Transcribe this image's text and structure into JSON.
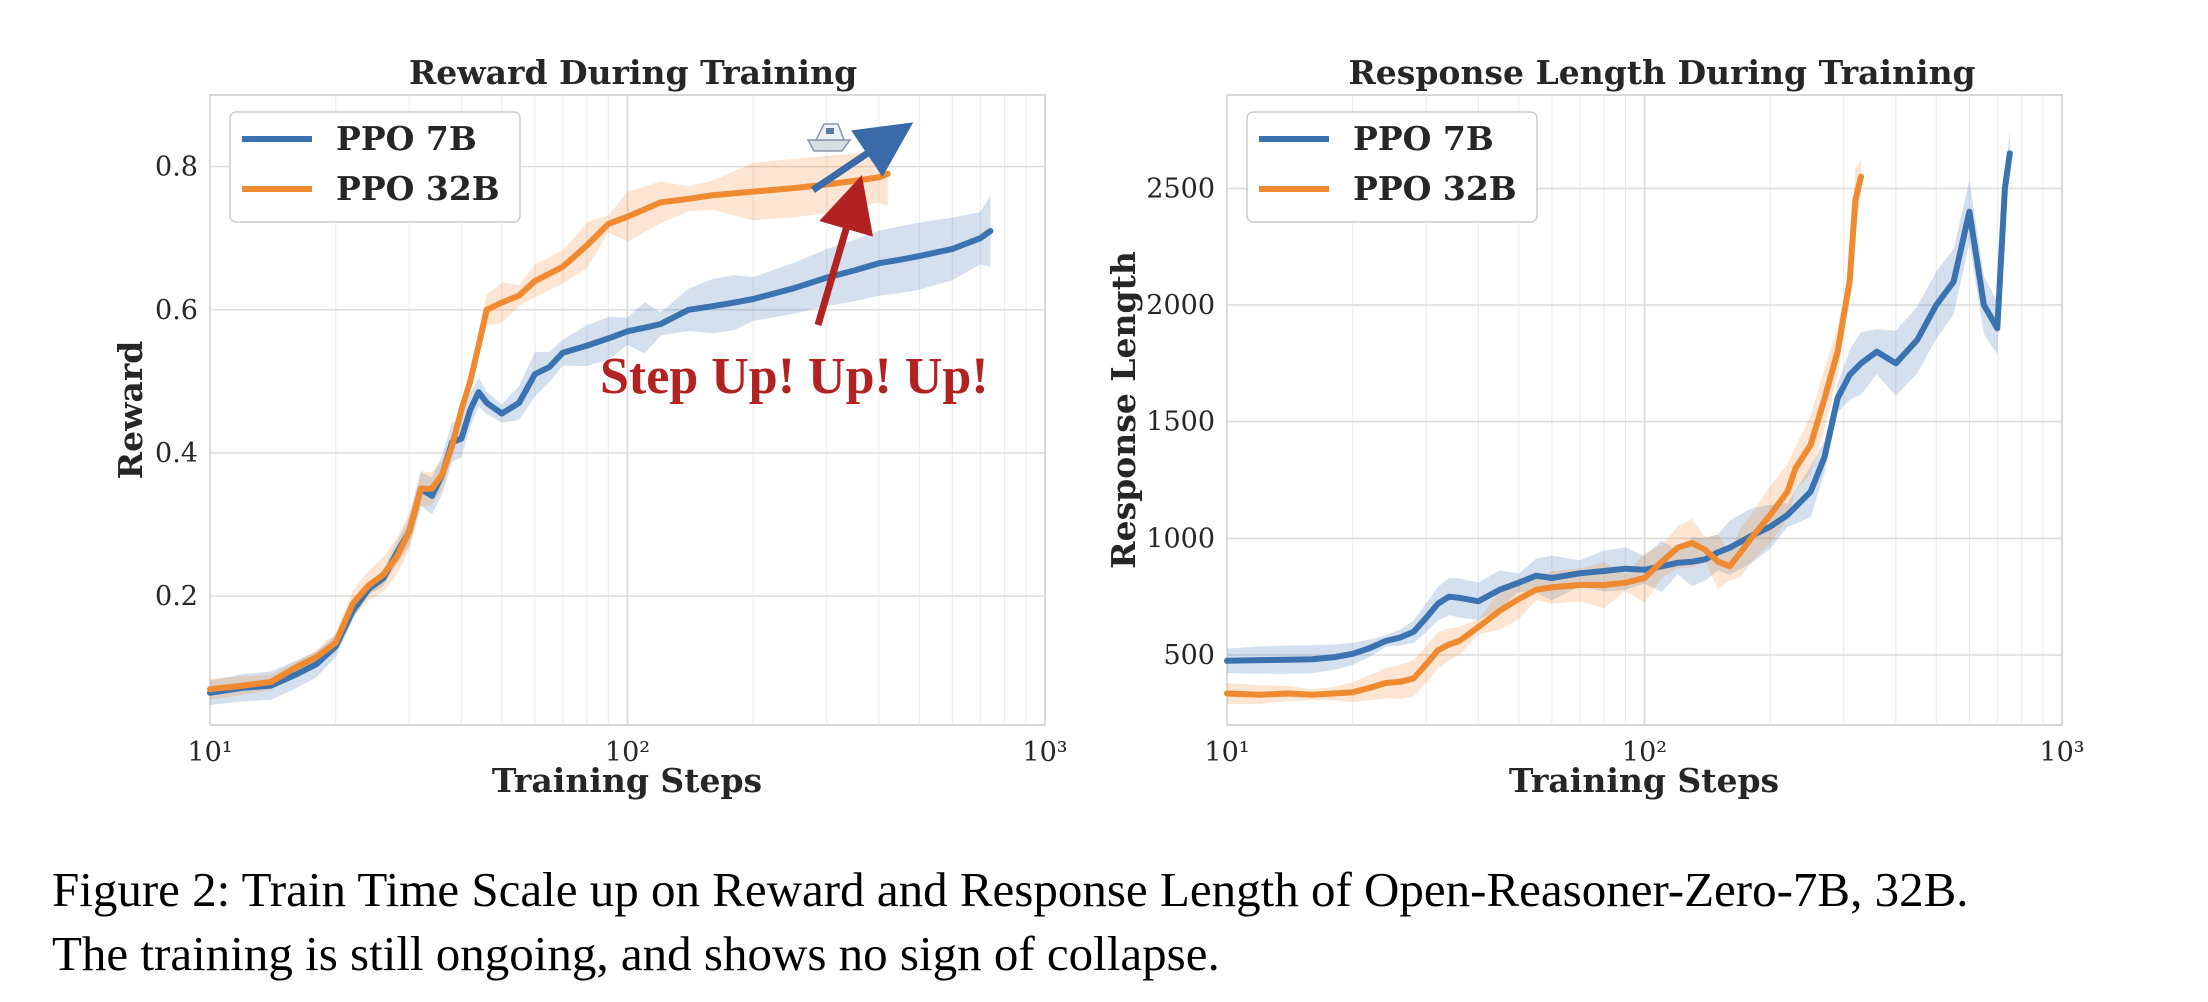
{
  "chart_data": [
    {
      "type": "line",
      "title": "Reward During Training",
      "xlabel": "Training Steps",
      "ylabel": "Reward",
      "x_scale": "log",
      "xlim": [
        10,
        1000
      ],
      "ylim": [
        0.02,
        0.9
      ],
      "x_ticks": [
        10,
        100,
        1000
      ],
      "y_ticks": [
        0.2,
        0.4,
        0.6,
        0.8
      ],
      "y_tick_labels": [
        "0.2",
        "0.4",
        "0.6",
        "0.8"
      ],
      "grid": true,
      "legend": "top-left",
      "series": [
        {
          "name": "PPO 7B",
          "color": "#3a73b0",
          "points": [
            [
              10,
              0.065
            ],
            [
              12,
              0.072
            ],
            [
              14,
              0.075
            ],
            [
              16,
              0.09
            ],
            [
              18,
              0.105
            ],
            [
              20,
              0.13
            ],
            [
              22,
              0.18
            ],
            [
              24,
              0.21
            ],
            [
              26,
              0.225
            ],
            [
              28,
              0.26
            ],
            [
              30,
              0.29
            ],
            [
              32,
              0.35
            ],
            [
              34,
              0.34
            ],
            [
              36,
              0.37
            ],
            [
              38,
              0.415
            ],
            [
              40,
              0.42
            ],
            [
              42,
              0.46
            ],
            [
              44,
              0.485
            ],
            [
              46,
              0.47
            ],
            [
              50,
              0.455
            ],
            [
              55,
              0.47
            ],
            [
              60,
              0.51
            ],
            [
              65,
              0.52
            ],
            [
              70,
              0.54
            ],
            [
              80,
              0.55
            ],
            [
              90,
              0.56
            ],
            [
              100,
              0.57
            ],
            [
              110,
              0.575
            ],
            [
              120,
              0.58
            ],
            [
              140,
              0.6
            ],
            [
              160,
              0.605
            ],
            [
              180,
              0.61
            ],
            [
              200,
              0.615
            ],
            [
              250,
              0.63
            ],
            [
              300,
              0.645
            ],
            [
              350,
              0.655
            ],
            [
              400,
              0.665
            ],
            [
              450,
              0.67
            ],
            [
              500,
              0.675
            ],
            [
              600,
              0.685
            ],
            [
              700,
              0.7
            ],
            [
              740,
              0.71
            ]
          ]
        },
        {
          "name": "PPO 32B",
          "color": "#f08a30",
          "points": [
            [
              10,
              0.07
            ],
            [
              12,
              0.075
            ],
            [
              14,
              0.08
            ],
            [
              16,
              0.1
            ],
            [
              18,
              0.115
            ],
            [
              20,
              0.135
            ],
            [
              22,
              0.19
            ],
            [
              24,
              0.215
            ],
            [
              26,
              0.23
            ],
            [
              28,
              0.255
            ],
            [
              30,
              0.29
            ],
            [
              32,
              0.35
            ],
            [
              34,
              0.35
            ],
            [
              36,
              0.37
            ],
            [
              38,
              0.41
            ],
            [
              40,
              0.46
            ],
            [
              42,
              0.5
            ],
            [
              44,
              0.55
            ],
            [
              46,
              0.6
            ],
            [
              50,
              0.61
            ],
            [
              55,
              0.62
            ],
            [
              60,
              0.64
            ],
            [
              70,
              0.66
            ],
            [
              80,
              0.69
            ],
            [
              90,
              0.72
            ],
            [
              100,
              0.73
            ],
            [
              120,
              0.75
            ],
            [
              140,
              0.755
            ],
            [
              160,
              0.76
            ],
            [
              200,
              0.765
            ],
            [
              250,
              0.77
            ],
            [
              300,
              0.775
            ],
            [
              350,
              0.78
            ],
            [
              400,
              0.785
            ],
            [
              420,
              0.79
            ]
          ]
        }
      ],
      "annotations": [
        {
          "text": "Step Up! Up! Up!",
          "color": "#b22222"
        }
      ]
    },
    {
      "type": "line",
      "title": "Response Length During Training",
      "xlabel": "Training Steps",
      "ylabel": "Response Length",
      "x_scale": "log",
      "xlim": [
        10,
        1000
      ],
      "ylim": [
        200,
        2900
      ],
      "x_ticks": [
        10,
        100,
        1000
      ],
      "y_ticks": [
        500,
        1000,
        1500,
        2000,
        2500
      ],
      "y_tick_labels": [
        "500",
        "1000",
        "1500",
        "2000",
        "2500"
      ],
      "grid": true,
      "legend": "top-left",
      "series": [
        {
          "name": "PPO 7B",
          "color": "#3a73b0",
          "points": [
            [
              10,
              475
            ],
            [
              12,
              478
            ],
            [
              14,
              480
            ],
            [
              16,
              482
            ],
            [
              18,
              490
            ],
            [
              20,
              505
            ],
            [
              22,
              530
            ],
            [
              24,
              560
            ],
            [
              26,
              575
            ],
            [
              28,
              600
            ],
            [
              30,
              660
            ],
            [
              32,
              720
            ],
            [
              34,
              750
            ],
            [
              36,
              745
            ],
            [
              40,
              730
            ],
            [
              45,
              780
            ],
            [
              50,
              810
            ],
            [
              55,
              840
            ],
            [
              60,
              830
            ],
            [
              70,
              850
            ],
            [
              80,
              860
            ],
            [
              90,
              870
            ],
            [
              100,
              865
            ],
            [
              110,
              880
            ],
            [
              120,
              895
            ],
            [
              130,
              900
            ],
            [
              140,
              910
            ],
            [
              150,
              940
            ],
            [
              160,
              960
            ],
            [
              180,
              1010
            ],
            [
              200,
              1050
            ],
            [
              220,
              1100
            ],
            [
              250,
              1200
            ],
            [
              270,
              1350
            ],
            [
              290,
              1600
            ],
            [
              310,
              1700
            ],
            [
              330,
              1750
            ],
            [
              360,
              1800
            ],
            [
              400,
              1750
            ],
            [
              450,
              1850
            ],
            [
              500,
              2000
            ],
            [
              550,
              2100
            ],
            [
              600,
              2400
            ],
            [
              650,
              2000
            ],
            [
              700,
              1900
            ],
            [
              730,
              2500
            ],
            [
              750,
              2650
            ]
          ]
        },
        {
          "name": "PPO 32B",
          "color": "#f08a30",
          "points": [
            [
              10,
              335
            ],
            [
              12,
              330
            ],
            [
              14,
              335
            ],
            [
              16,
              330
            ],
            [
              18,
              335
            ],
            [
              20,
              340
            ],
            [
              22,
              360
            ],
            [
              24,
              380
            ],
            [
              26,
              385
            ],
            [
              28,
              400
            ],
            [
              30,
              460
            ],
            [
              32,
              520
            ],
            [
              34,
              545
            ],
            [
              36,
              560
            ],
            [
              40,
              620
            ],
            [
              45,
              690
            ],
            [
              50,
              740
            ],
            [
              55,
              780
            ],
            [
              60,
              790
            ],
            [
              70,
              800
            ],
            [
              80,
              800
            ],
            [
              90,
              810
            ],
            [
              100,
              830
            ],
            [
              110,
              900
            ],
            [
              120,
              960
            ],
            [
              130,
              980
            ],
            [
              140,
              950
            ],
            [
              150,
              900
            ],
            [
              160,
              880
            ],
            [
              170,
              940
            ],
            [
              180,
              1000
            ],
            [
              200,
              1100
            ],
            [
              220,
              1200
            ],
            [
              230,
              1300
            ],
            [
              250,
              1400
            ],
            [
              270,
              1600
            ],
            [
              290,
              1800
            ],
            [
              310,
              2100
            ],
            [
              320,
              2450
            ],
            [
              330,
              2550
            ]
          ]
        }
      ]
    }
  ],
  "caption": {
    "line1": "Figure 2: Train Time Scale up on Reward and Response Length of Open-Reasoner-Zero-7B, 32B.",
    "line2": "The training is still ongoing, and shows no sign of collapse."
  }
}
